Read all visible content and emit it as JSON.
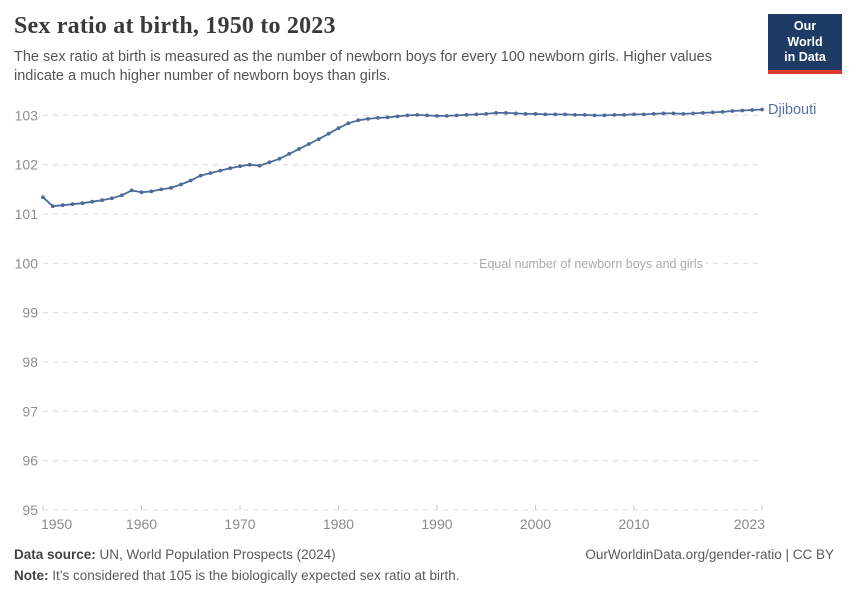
{
  "header": {
    "title": "Sex ratio at birth, 1950 to 2023",
    "subtitle": "The sex ratio at birth is measured as the number of newborn boys for every 100 newborn girls. Higher values indicate a much higher number of newborn boys than girls.",
    "logo": {
      "line1": "Our World",
      "line2": "in Data",
      "bg_color": "#1d3b64",
      "stripe_color": "#d93a2d"
    }
  },
  "chart_data": {
    "type": "line",
    "title": "Sex ratio at birth, 1950 to 2023",
    "xlabel": "",
    "ylabel": "",
    "ylim": [
      95,
      103
    ],
    "yticks": [
      95,
      96,
      97,
      98,
      99,
      100,
      101,
      102,
      103
    ],
    "xticks": [
      1950,
      1960,
      1970,
      1980,
      1990,
      2000,
      2010,
      2023
    ],
    "grid": "dashed horizontal gridlines",
    "legend": "end-of-line entity label",
    "annotation": {
      "text": "Equal number of newborn boys and girls",
      "y": 100
    },
    "x": [
      1950,
      1951,
      1952,
      1953,
      1954,
      1955,
      1956,
      1957,
      1958,
      1959,
      1960,
      1961,
      1962,
      1963,
      1964,
      1965,
      1966,
      1967,
      1968,
      1969,
      1970,
      1971,
      1972,
      1973,
      1974,
      1975,
      1976,
      1977,
      1978,
      1979,
      1980,
      1981,
      1982,
      1983,
      1984,
      1985,
      1986,
      1987,
      1988,
      1989,
      1990,
      1991,
      1992,
      1993,
      1994,
      1995,
      1996,
      1997,
      1998,
      1999,
      2000,
      2001,
      2002,
      2003,
      2004,
      2005,
      2006,
      2007,
      2008,
      2009,
      2010,
      2011,
      2012,
      2013,
      2014,
      2015,
      2016,
      2017,
      2018,
      2019,
      2020,
      2021,
      2022,
      2023
    ],
    "series": [
      {
        "name": "Djibouti",
        "color": "#4c6a9c",
        "label_color": "#5b6fa6",
        "values": [
          101.34,
          101.16,
          101.18,
          101.2,
          101.22,
          101.25,
          101.28,
          101.32,
          101.38,
          101.48,
          101.44,
          101.46,
          101.5,
          101.53,
          101.6,
          101.68,
          101.78,
          101.83,
          101.88,
          101.93,
          101.97,
          102.0,
          101.98,
          102.05,
          102.12,
          102.22,
          102.32,
          102.42,
          102.52,
          102.63,
          102.74,
          102.84,
          102.9,
          102.93,
          102.95,
          102.96,
          102.98,
          103.0,
          103.01,
          103.0,
          102.99,
          102.99,
          103.0,
          103.01,
          103.02,
          103.03,
          103.05,
          103.05,
          103.04,
          103.03,
          103.03,
          103.02,
          103.02,
          103.02,
          103.01,
          103.01,
          103.0,
          103.0,
          103.01,
          103.01,
          103.02,
          103.02,
          103.03,
          103.04,
          103.04,
          103.03,
          103.04,
          103.05,
          103.06,
          103.07,
          103.09,
          103.1,
          103.11,
          103.12
        ]
      }
    ]
  },
  "footer": {
    "datasource_label": "Data source:",
    "datasource_text": " UN, World Population Prospects (2024)",
    "credit": "OurWorldinData.org/gender-ratio | CC BY",
    "note_label": "Note:",
    "note_text": " It’s considered that 105 is the biologically expected sex ratio at birth."
  }
}
